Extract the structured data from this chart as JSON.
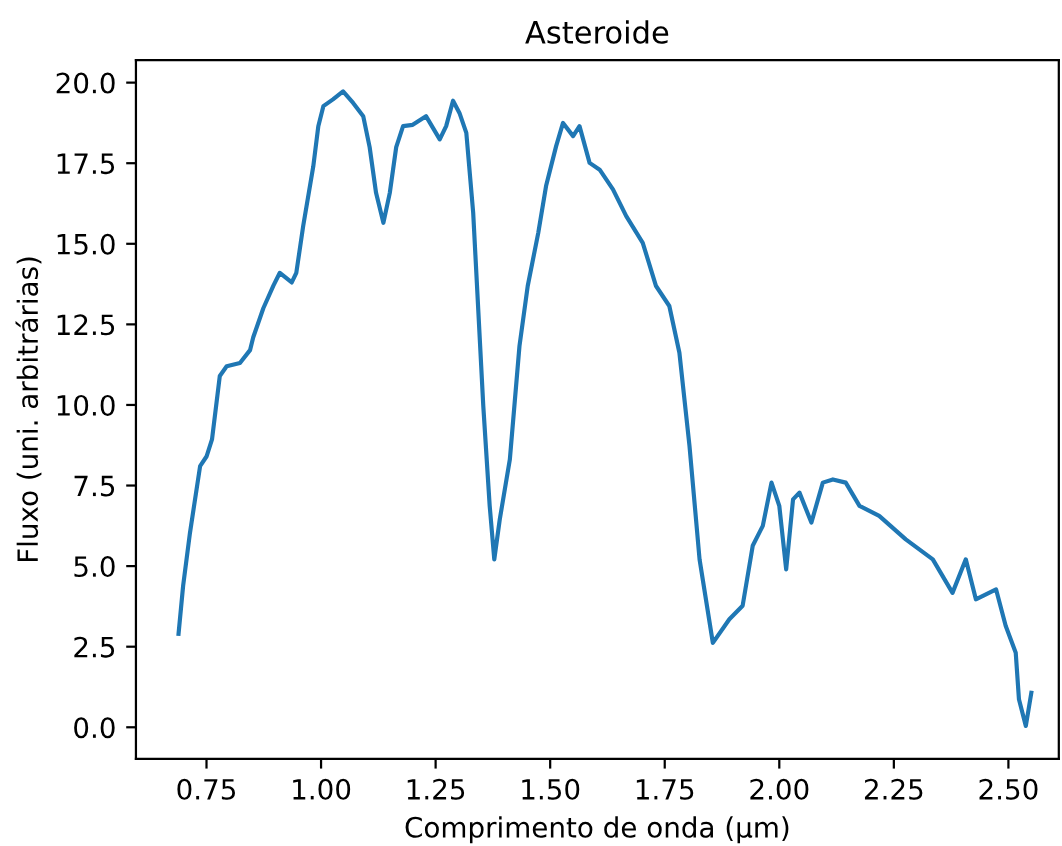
{
  "chart_data": {
    "type": "line",
    "title": "Asteroide",
    "xlabel": "Comprimento de onda (μm)",
    "ylabel": "Fluxo (uni. arbitrárias)",
    "xlim": [
      0.596,
      2.61
    ],
    "ylim": [
      -0.98,
      20.7
    ],
    "xticks": [
      {
        "value": 0.75,
        "label": "0.75"
      },
      {
        "value": 1.0,
        "label": "1.00"
      },
      {
        "value": 1.25,
        "label": "1.25"
      },
      {
        "value": 1.5,
        "label": "1.50"
      },
      {
        "value": 1.75,
        "label": "1.75"
      },
      {
        "value": 2.0,
        "label": "2.00"
      },
      {
        "value": 2.25,
        "label": "2.25"
      },
      {
        "value": 2.5,
        "label": "2.50"
      }
    ],
    "yticks": [
      {
        "value": 0,
        "label": "0.0"
      },
      {
        "value": 2.5,
        "label": "2.5"
      },
      {
        "value": 5,
        "label": "5.0"
      },
      {
        "value": 7.5,
        "label": "7.5"
      },
      {
        "value": 10,
        "label": "10.0"
      },
      {
        "value": 12.5,
        "label": "12.5"
      },
      {
        "value": 15,
        "label": "15.0"
      },
      {
        "value": 17.5,
        "label": "17.5"
      },
      {
        "value": 20,
        "label": "20.0"
      }
    ],
    "grid": false,
    "legend": false,
    "x": [
      0.689,
      0.699,
      0.714,
      0.736,
      0.75,
      0.762,
      0.779,
      0.794,
      0.823,
      0.845,
      0.852,
      0.874,
      0.896,
      0.91,
      0.936,
      0.946,
      0.961,
      0.983,
      0.994,
      1.005,
      1.026,
      1.048,
      1.07,
      1.092,
      1.106,
      1.12,
      1.136,
      1.15,
      1.164,
      1.179,
      1.2,
      1.229,
      1.259,
      1.273,
      1.288,
      1.302,
      1.317,
      1.332,
      1.354,
      1.368,
      1.378,
      1.39,
      1.412,
      1.433,
      1.451,
      1.474,
      1.491,
      1.513,
      1.528,
      1.55,
      1.564,
      1.586,
      1.608,
      1.637,
      1.666,
      1.702,
      1.731,
      1.76,
      1.782,
      1.804,
      1.826,
      1.855,
      1.891,
      1.92,
      1.942,
      1.964,
      1.983,
      2.0,
      2.015,
      2.03,
      2.044,
      2.07,
      2.095,
      2.117,
      2.145,
      2.175,
      2.218,
      2.276,
      2.335,
      2.378,
      2.407,
      2.429,
      2.473,
      2.494,
      2.516,
      2.523,
      2.538,
      2.55
    ],
    "series": [
      {
        "color": "#1f77b4",
        "values": [
          2.9,
          4.39,
          6.04,
          8.1,
          8.4,
          8.93,
          10.9,
          11.2,
          11.3,
          11.7,
          12.1,
          13.0,
          13.7,
          14.1,
          13.8,
          14.1,
          15.55,
          17.4,
          18.65,
          19.27,
          19.48,
          19.73,
          19.37,
          18.96,
          18.0,
          16.58,
          15.65,
          16.58,
          18.0,
          18.65,
          18.69,
          18.96,
          18.24,
          18.65,
          19.44,
          19.06,
          18.44,
          15.96,
          9.97,
          6.87,
          5.21,
          6.45,
          8.31,
          11.83,
          13.69,
          15.34,
          16.79,
          18.03,
          18.75,
          18.34,
          18.65,
          17.51,
          17.3,
          16.69,
          15.86,
          15.03,
          13.69,
          13.07,
          11.62,
          8.73,
          5.21,
          2.62,
          3.35,
          3.77,
          5.63,
          6.25,
          7.59,
          6.87,
          4.9,
          7.07,
          7.28,
          6.35,
          7.59,
          7.69,
          7.59,
          6.87,
          6.56,
          5.83,
          5.21,
          4.17,
          5.21,
          3.97,
          4.28,
          3.15,
          2.31,
          0.87,
          0.04,
          1.07
        ]
      }
    ]
  }
}
